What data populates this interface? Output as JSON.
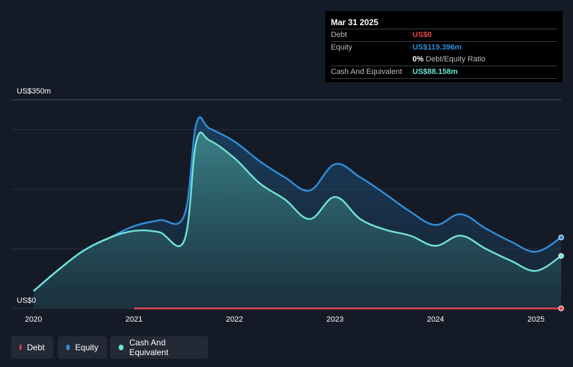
{
  "tooltip": {
    "date": "Mar 31 2025",
    "debt_label": "Debt",
    "debt_value": "US$0",
    "equity_label": "Equity",
    "equity_value": "US$119.396m",
    "ratio_value": "0%",
    "ratio_label": "Debt/Equity Ratio",
    "cash_label": "Cash And Equivalent",
    "cash_value": "US$88.158m"
  },
  "colors": {
    "debt": "#e5484d",
    "equity": "#2f8fdb",
    "cash": "#6fe3d4",
    "background": "#151b26"
  },
  "legend": [
    {
      "label": "Debt",
      "color": "#e5484d"
    },
    {
      "label": "Equity",
      "color": "#2f8fdb"
    },
    {
      "label": "Cash And Equivalent",
      "color": "#6fe3d4"
    }
  ],
  "chart_data": {
    "type": "area",
    "ylim": [
      0,
      350
    ],
    "y_top_label": "US$350m",
    "y_bottom_label": "US$0",
    "xlim": [
      2020.0,
      2025.25
    ],
    "x_tick_labels": [
      "2020",
      "2021",
      "2022",
      "2023",
      "2024",
      "2025"
    ],
    "x_ticks": [
      2020,
      2021,
      2022,
      2023,
      2024,
      2025
    ],
    "series": [
      {
        "name": "Equity",
        "x": [
          2020.0,
          2020.25,
          2020.5,
          2020.75,
          2021.0,
          2021.25,
          2021.5,
          2021.62,
          2021.75,
          2022.0,
          2022.25,
          2022.5,
          2022.75,
          2023.0,
          2023.25,
          2023.5,
          2023.75,
          2024.0,
          2024.25,
          2024.5,
          2024.75,
          2025.0,
          2025.25
        ],
        "values": [
          29,
          65,
          97,
          118,
          138,
          148,
          156,
          310,
          302,
          280,
          247,
          220,
          198,
          242,
          220,
          192,
          162,
          140,
          158,
          134,
          112,
          95,
          119
        ]
      },
      {
        "name": "Cash And Equivalent",
        "x": [
          2020.0,
          2020.25,
          2020.5,
          2020.75,
          2021.0,
          2021.25,
          2021.5,
          2021.62,
          2021.75,
          2022.0,
          2022.25,
          2022.5,
          2022.75,
          2023.0,
          2023.25,
          2023.5,
          2023.75,
          2024.0,
          2024.25,
          2024.5,
          2024.75,
          2025.0,
          2025.25
        ],
        "values": [
          29,
          65,
          97,
          118,
          130,
          128,
          114,
          280,
          282,
          252,
          210,
          183,
          150,
          187,
          150,
          132,
          122,
          105,
          122,
          100,
          80,
          63,
          88
        ]
      },
      {
        "name": "Debt",
        "x": [
          2021.0,
          2025.25
        ],
        "values": [
          0,
          0
        ]
      }
    ]
  }
}
